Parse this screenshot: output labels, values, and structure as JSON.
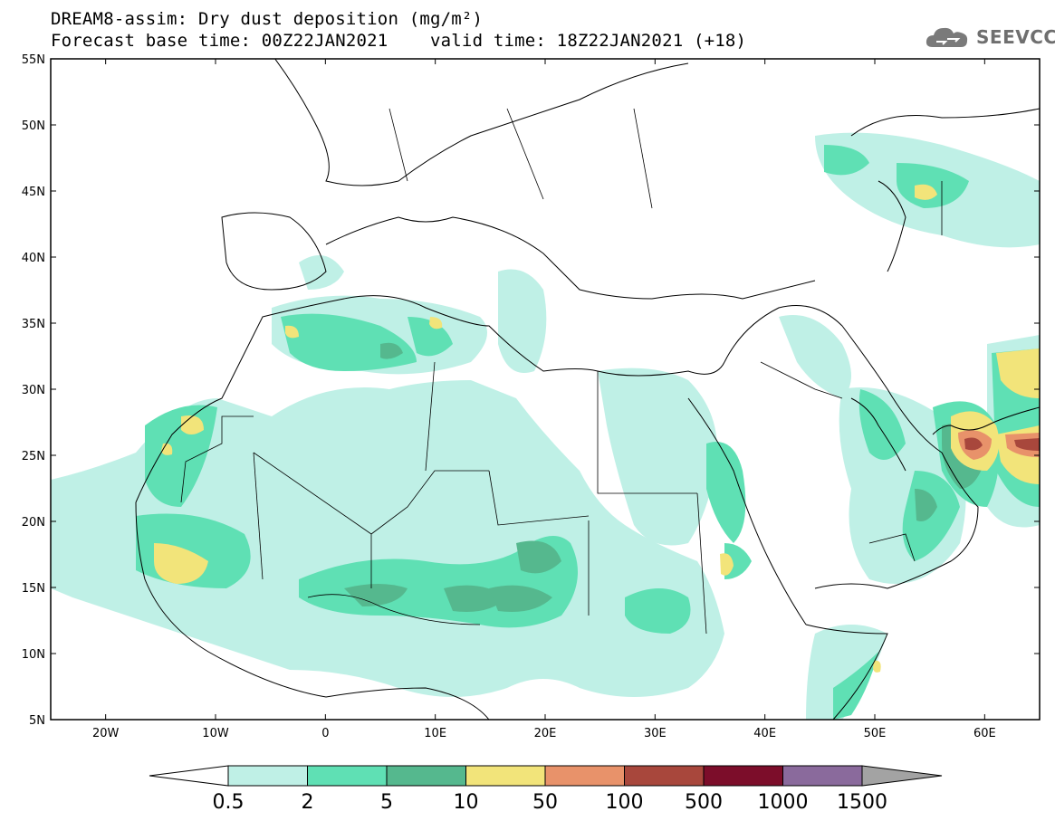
{
  "title": {
    "line1": "DREAM8-assim: Dry dust deposition (mg/m²)",
    "line2_left": "Forecast base time: 00Z22JAN2021",
    "line2_right": "valid time: 18Z22JAN2021 (+18)"
  },
  "logo": {
    "text": "SEEVCCC",
    "icon": "cloud-icon"
  },
  "map": {
    "lon_range": [
      -25,
      65
    ],
    "lat_range": [
      5,
      55
    ],
    "lat_ticks": [
      "55N",
      "50N",
      "45N",
      "40N",
      "35N",
      "30N",
      "25N",
      "20N",
      "15N",
      "10N",
      "5N"
    ],
    "lat_values": [
      55,
      50,
      45,
      40,
      35,
      30,
      25,
      20,
      15,
      10,
      5
    ],
    "lon_ticks": [
      "20W",
      "10W",
      "0",
      "10E",
      "20E",
      "30E",
      "40E",
      "50E",
      "60E"
    ],
    "lon_values": [
      -20,
      -10,
      0,
      10,
      20,
      30,
      40,
      50,
      60
    ]
  },
  "legend": {
    "labels": [
      "0.5",
      "2",
      "5",
      "10",
      "50",
      "100",
      "500",
      "1000",
      "1500"
    ],
    "colors": [
      "#bff0e6",
      "#5fe0b4",
      "#55b88e",
      "#f2e47a",
      "#e8926a",
      "#a8473c",
      "#7c0d2a",
      "#8a6a9c"
    ],
    "under_color": "#ffffff",
    "over_color": "#a3a3a3"
  },
  "colors": {
    "c1": "#bff0e6",
    "c2": "#5fe0b4",
    "c3": "#55b88e",
    "c4": "#f2e47a",
    "c5": "#e8926a",
    "c6": "#a8473c"
  }
}
